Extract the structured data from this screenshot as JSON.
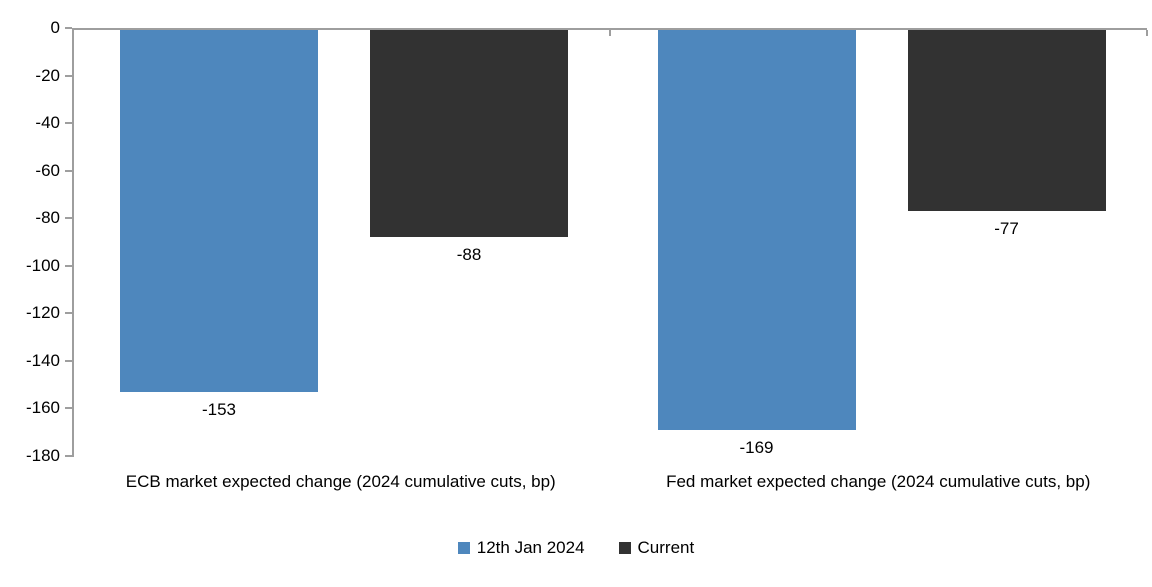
{
  "chart_data": {
    "type": "bar",
    "orientation": "vertical",
    "categories": [
      "ECB market expected change (2024 cumulative cuts, bp)",
      "Fed market expected change (2024 cumulative cuts, bp)"
    ],
    "series": [
      {
        "name": "12th Jan 2024",
        "color": "#4e87bd",
        "values": [
          -153,
          -169
        ]
      },
      {
        "name": "Current",
        "color": "#323232",
        "values": [
          -88,
          -77
        ]
      }
    ],
    "data_labels": [
      [
        "-153",
        "-169"
      ],
      [
        "-88",
        "-77"
      ]
    ],
    "title": "",
    "xlabel": "",
    "ylabel": "",
    "ylim": [
      -180,
      0
    ],
    "yticks": [
      "0",
      "-20",
      "-40",
      "-60",
      "-80",
      "-100",
      "-120",
      "-140",
      "-160",
      "-180"
    ],
    "ytick_values": [
      0,
      -20,
      -40,
      -60,
      -80,
      -100,
      -120,
      -140,
      -160,
      -180
    ],
    "grid": false,
    "legend_position": "bottom",
    "axis_color": "#9e9e9e",
    "text_color": "#000000",
    "background_color": "#ffffff"
  }
}
